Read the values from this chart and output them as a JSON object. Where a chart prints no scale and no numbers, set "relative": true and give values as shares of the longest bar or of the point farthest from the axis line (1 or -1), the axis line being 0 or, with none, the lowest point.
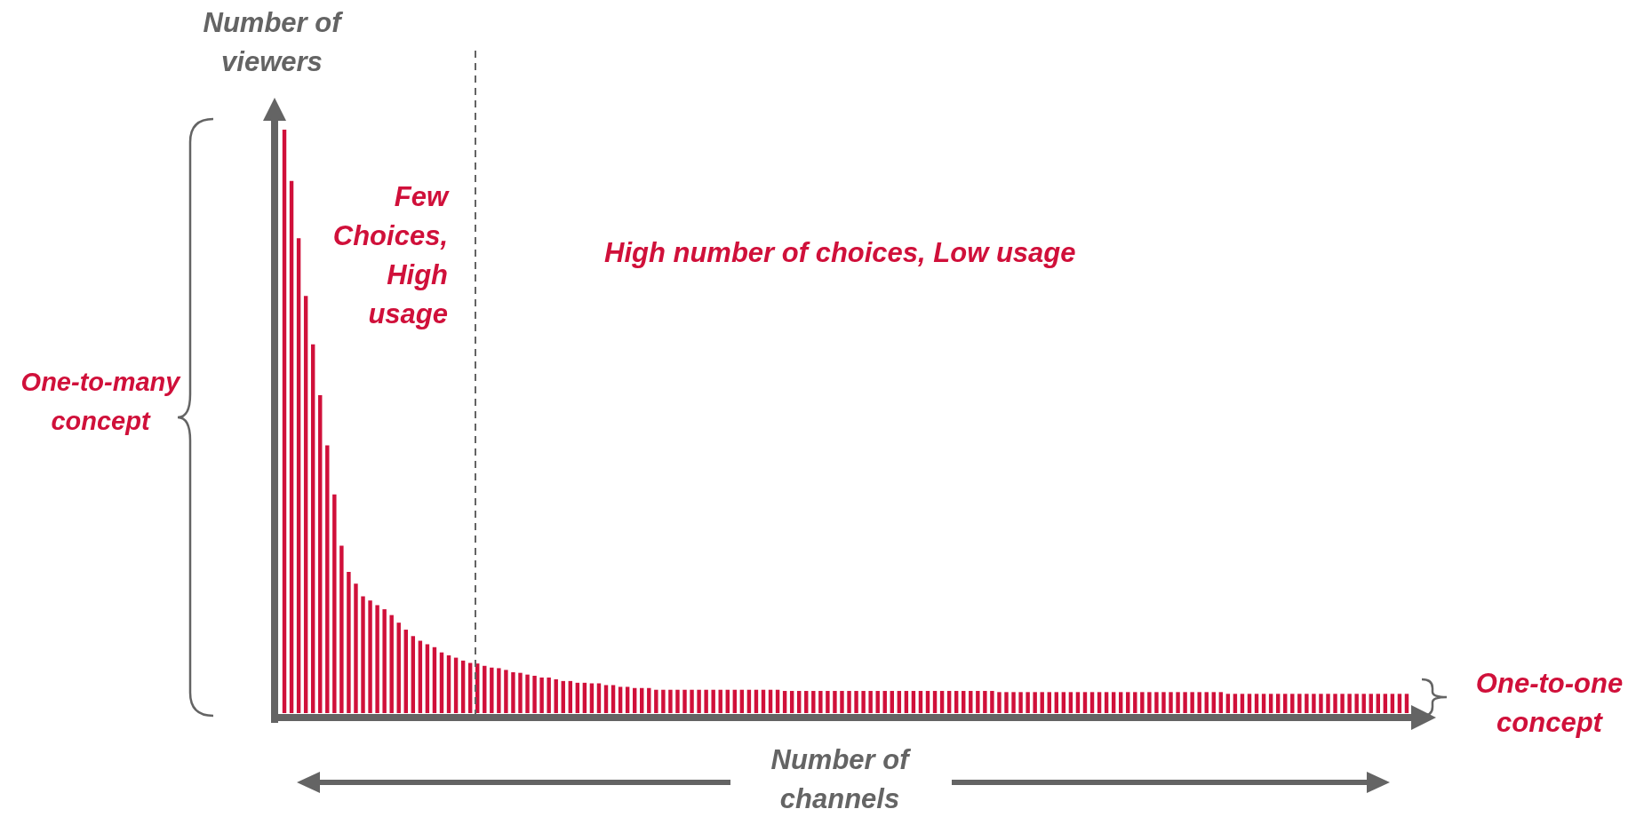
{
  "chart_data": {
    "type": "bar",
    "relative": true,
    "color": "#d0103a",
    "ylabel": "Number of viewers",
    "xlabel": "Number of channels",
    "annotations": [
      "Few Choices, High usage",
      "High number of choices, Low usage",
      "One-to-many concept",
      "One-to-one concept"
    ],
    "categories": [
      null,
      null,
      null,
      null,
      null,
      null,
      null,
      null,
      null,
      null,
      null,
      null,
      null,
      null,
      null,
      null,
      null,
      null,
      null,
      null,
      null,
      null,
      null,
      null,
      null,
      null,
      null,
      null,
      null,
      null,
      null,
      null,
      null,
      null,
      null,
      null,
      null,
      null,
      null,
      null,
      null,
      null,
      null,
      null,
      null,
      null,
      null,
      null,
      null,
      null,
      null,
      null,
      null,
      null,
      null,
      null,
      null,
      null,
      null,
      null,
      null,
      null,
      null,
      null,
      null,
      null,
      null,
      null,
      null,
      null,
      null,
      null,
      null,
      null,
      null,
      null,
      null,
      null,
      null,
      null,
      null,
      null,
      null,
      null,
      null,
      null,
      null,
      null,
      null,
      null,
      null,
      null,
      null,
      null,
      null,
      null,
      null,
      null,
      null,
      null,
      null,
      null,
      null,
      null,
      null,
      null,
      null,
      null,
      null,
      null,
      null,
      null,
      null,
      null,
      null,
      null,
      null,
      null,
      null,
      null,
      null,
      null,
      null,
      null,
      null,
      null,
      null,
      null,
      null,
      null,
      null,
      null,
      null,
      null,
      null,
      null,
      null,
      null,
      null,
      null,
      null,
      null,
      null,
      null,
      null,
      null,
      null,
      null,
      null,
      null,
      null,
      null,
      null,
      null,
      null,
      null,
      null,
      null
    ],
    "values": [
      1,
      0.912,
      0.814,
      0.715,
      0.632,
      0.545,
      0.459,
      0.375,
      0.287,
      0.242,
      0.222,
      0.2,
      0.193,
      0.185,
      0.178,
      0.168,
      0.155,
      0.143,
      0.132,
      0.124,
      0.118,
      0.113,
      0.104,
      0.099,
      0.095,
      0.09,
      0.086,
      0.085,
      0.081,
      0.078,
      0.077,
      0.074,
      0.07,
      0.069,
      0.066,
      0.064,
      0.061,
      0.061,
      0.058,
      0.055,
      0.055,
      0.052,
      0.052,
      0.051,
      0.051,
      0.048,
      0.048,
      0.045,
      0.045,
      0.043,
      0.043,
      0.043,
      0.04,
      0.04,
      0.04,
      0.04,
      0.04,
      0.04,
      0.04,
      0.04,
      0.04,
      0.04,
      0.04,
      0.04,
      0.04,
      0.04,
      0.04,
      0.04,
      0.04,
      0.04,
      0.038,
      0.038,
      0.038,
      0.038,
      0.038,
      0.038,
      0.038,
      0.038,
      0.038,
      0.038,
      0.038,
      0.038,
      0.038,
      0.038,
      0.038,
      0.038,
      0.038,
      0.038,
      0.038,
      0.038,
      0.038,
      0.038,
      0.038,
      0.038,
      0.038,
      0.038,
      0.038,
      0.038,
      0.038,
      0.038,
      0.036,
      0.036,
      0.036,
      0.036,
      0.036,
      0.036,
      0.036,
      0.036,
      0.036,
      0.036,
      0.036,
      0.036,
      0.036,
      0.036,
      0.036,
      0.036,
      0.036,
      0.036,
      0.036,
      0.036,
      0.036,
      0.036,
      0.036,
      0.036,
      0.036,
      0.036,
      0.036,
      0.036,
      0.036,
      0.036,
      0.036,
      0.036,
      0.033,
      0.033,
      0.033,
      0.033,
      0.033,
      0.033,
      0.033,
      0.033,
      0.033,
      0.033,
      0.033,
      0.033,
      0.033,
      0.033,
      0.033,
      0.033,
      0.033,
      0.033,
      0.033,
      0.033,
      0.033,
      0.033,
      0.033,
      0.033,
      0.033,
      0.033
    ]
  }
}
